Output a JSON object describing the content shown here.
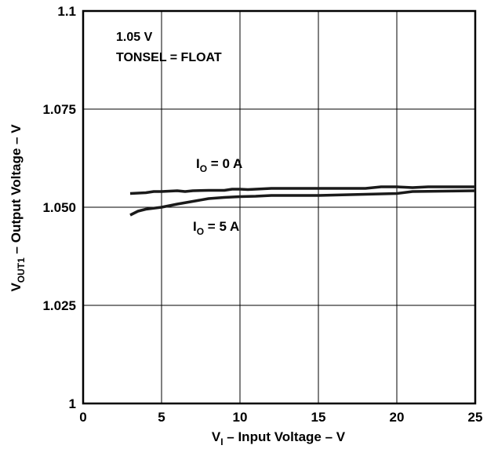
{
  "chart_data": {
    "type": "line",
    "xlabel": "V I – Input Voltage – V",
    "xlabel_main": "V",
    "xlabel_sub": "I",
    "xlabel_rest": " – Input Voltage – V",
    "ylabel_main": "V",
    "ylabel_sub": "OUT1",
    "ylabel_rest": " – Output Voltage – V",
    "xlim": [
      0,
      25
    ],
    "ylim": [
      1.0,
      1.1
    ],
    "xticks": [
      "0",
      "5",
      "10",
      "15",
      "20",
      "25"
    ],
    "yticks": [
      "1",
      "1.025",
      "1.050",
      "1.075",
      "1.1"
    ],
    "grid": true,
    "annotations": [
      "1.05 V",
      "TONSEL = FLOAT"
    ],
    "series": [
      {
        "name": "IO = 0 A",
        "label_main": "I",
        "label_sub": "O",
        "label_rest": " = 0 A",
        "x": [
          3,
          4,
          4.5,
          5,
          6,
          6.5,
          7,
          8,
          9,
          9.5,
          10,
          10.5,
          11,
          12,
          13,
          15,
          18,
          19,
          20,
          21,
          22,
          25
        ],
        "y": [
          1.0535,
          1.0537,
          1.054,
          1.054,
          1.0542,
          1.054,
          1.0542,
          1.0543,
          1.0543,
          1.0546,
          1.0546,
          1.0545,
          1.0546,
          1.0548,
          1.0548,
          1.0548,
          1.0548,
          1.0552,
          1.0552,
          1.055,
          1.0552,
          1.0552
        ]
      },
      {
        "name": "IO = 5 A",
        "label_main": "I",
        "label_sub": "O",
        "label_rest": " = 5 A",
        "x": [
          3,
          3.5,
          4,
          5,
          6,
          7,
          8,
          9,
          10,
          11,
          12,
          13,
          15,
          20,
          21,
          25
        ],
        "y": [
          1.048,
          1.049,
          1.0495,
          1.05,
          1.0508,
          1.0515,
          1.0522,
          1.0525,
          1.0527,
          1.0528,
          1.053,
          1.053,
          1.053,
          1.0535,
          1.054,
          1.0542
        ]
      }
    ]
  }
}
